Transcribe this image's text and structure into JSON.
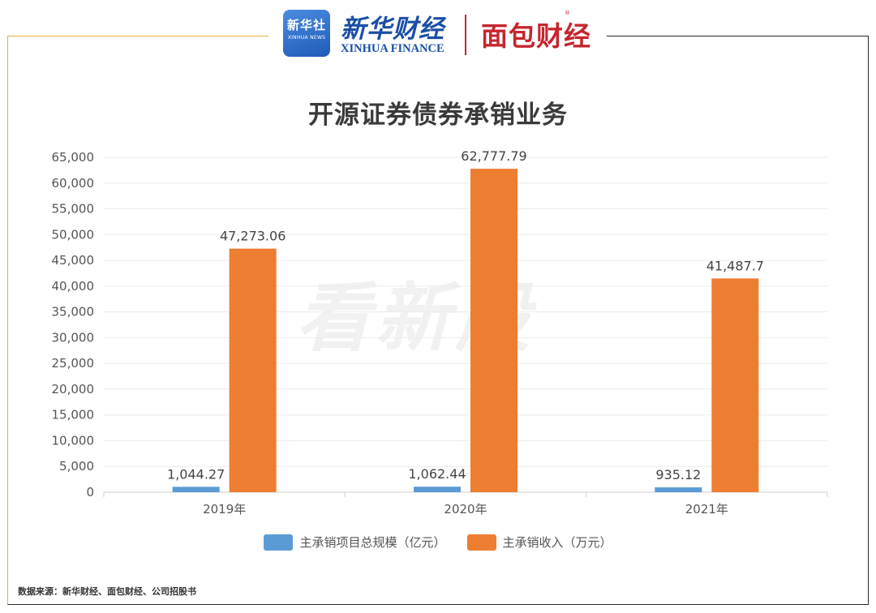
{
  "header": {
    "xinhua_badge_cn": "新华社",
    "xinhua_badge_en": "XINHUA NEWS",
    "xinhua_finance_cn": "新华财经",
    "xinhua_finance_en": "XINHUA FINANCE",
    "mianbao_cn": "面包财经",
    "registered_mark": "®"
  },
  "watermark": "看新股",
  "source": "数据来源：新华财经、面包财经、公司招股书",
  "colors": {
    "series_1": "#5b9bd5",
    "series_2": "#ed7d31",
    "frame_accent": "#e8b23a",
    "logo_red": "#c6262e",
    "logo_blue": "#1b4fa6"
  },
  "chart_data": {
    "type": "bar",
    "title": "开源证券债券承销业务",
    "categories": [
      "2019年",
      "2020年",
      "2021年"
    ],
    "series": [
      {
        "name": "主承销项目总规模（亿元）",
        "values": [
          1044.27,
          1062.44,
          935.12
        ],
        "labels": [
          "1,044.27",
          "1,062.44",
          "935.12"
        ]
      },
      {
        "name": "主承销收入（万元）",
        "values": [
          47273.06,
          62777.79,
          41487.7
        ],
        "labels": [
          "47,273.06",
          "62,777.79",
          "41,487.7"
        ]
      }
    ],
    "ylim": [
      0,
      65000
    ],
    "yticks": [
      0,
      5000,
      10000,
      15000,
      20000,
      25000,
      30000,
      35000,
      40000,
      45000,
      50000,
      55000,
      60000,
      65000
    ],
    "ytick_labels": [
      "0",
      "5,000",
      "10,000",
      "15,000",
      "20,000",
      "25,000",
      "30,000",
      "35,000",
      "40,000",
      "45,000",
      "50,000",
      "55,000",
      "60,000",
      "65,000"
    ],
    "grid": true,
    "legend_position": "bottom"
  }
}
